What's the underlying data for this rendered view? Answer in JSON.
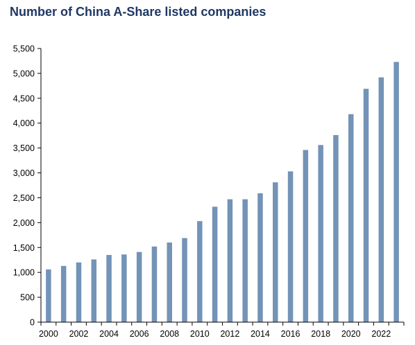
{
  "chart_data": {
    "type": "bar",
    "title": "Number of China A-Share listed companies",
    "xlabel": "",
    "ylabel": "",
    "categories": [
      "2000",
      "2001",
      "2002",
      "2003",
      "2004",
      "2005",
      "2006",
      "2007",
      "2008",
      "2009",
      "2010",
      "2011",
      "2012",
      "2013",
      "2014",
      "2015",
      "2016",
      "2017",
      "2018",
      "2019",
      "2020",
      "2021",
      "2022",
      "2023"
    ],
    "x_tick_labels": [
      "2000",
      "2002",
      "2004",
      "2006",
      "2008",
      "2010",
      "2012",
      "2014",
      "2016",
      "2018",
      "2020",
      "2022"
    ],
    "values": [
      1060,
      1130,
      1200,
      1260,
      1350,
      1360,
      1410,
      1520,
      1600,
      1690,
      2030,
      2320,
      2470,
      2470,
      2590,
      2810,
      3030,
      3460,
      3560,
      3760,
      4180,
      4690,
      4920,
      5230
    ],
    "ylim": [
      0,
      5500
    ],
    "y_ticks": [
      0,
      500,
      1000,
      1500,
      2000,
      2500,
      3000,
      3500,
      4000,
      4500,
      5000,
      5500
    ],
    "y_tick_labels": [
      "0",
      "500",
      "1,000",
      "1,500",
      "2,000",
      "2,500",
      "3,000",
      "3,500",
      "4,000",
      "4,500",
      "5,000",
      "5,500"
    ],
    "bar_color": "#7393B7",
    "title_color": "#1F3864",
    "grid": false,
    "legend": "none"
  }
}
